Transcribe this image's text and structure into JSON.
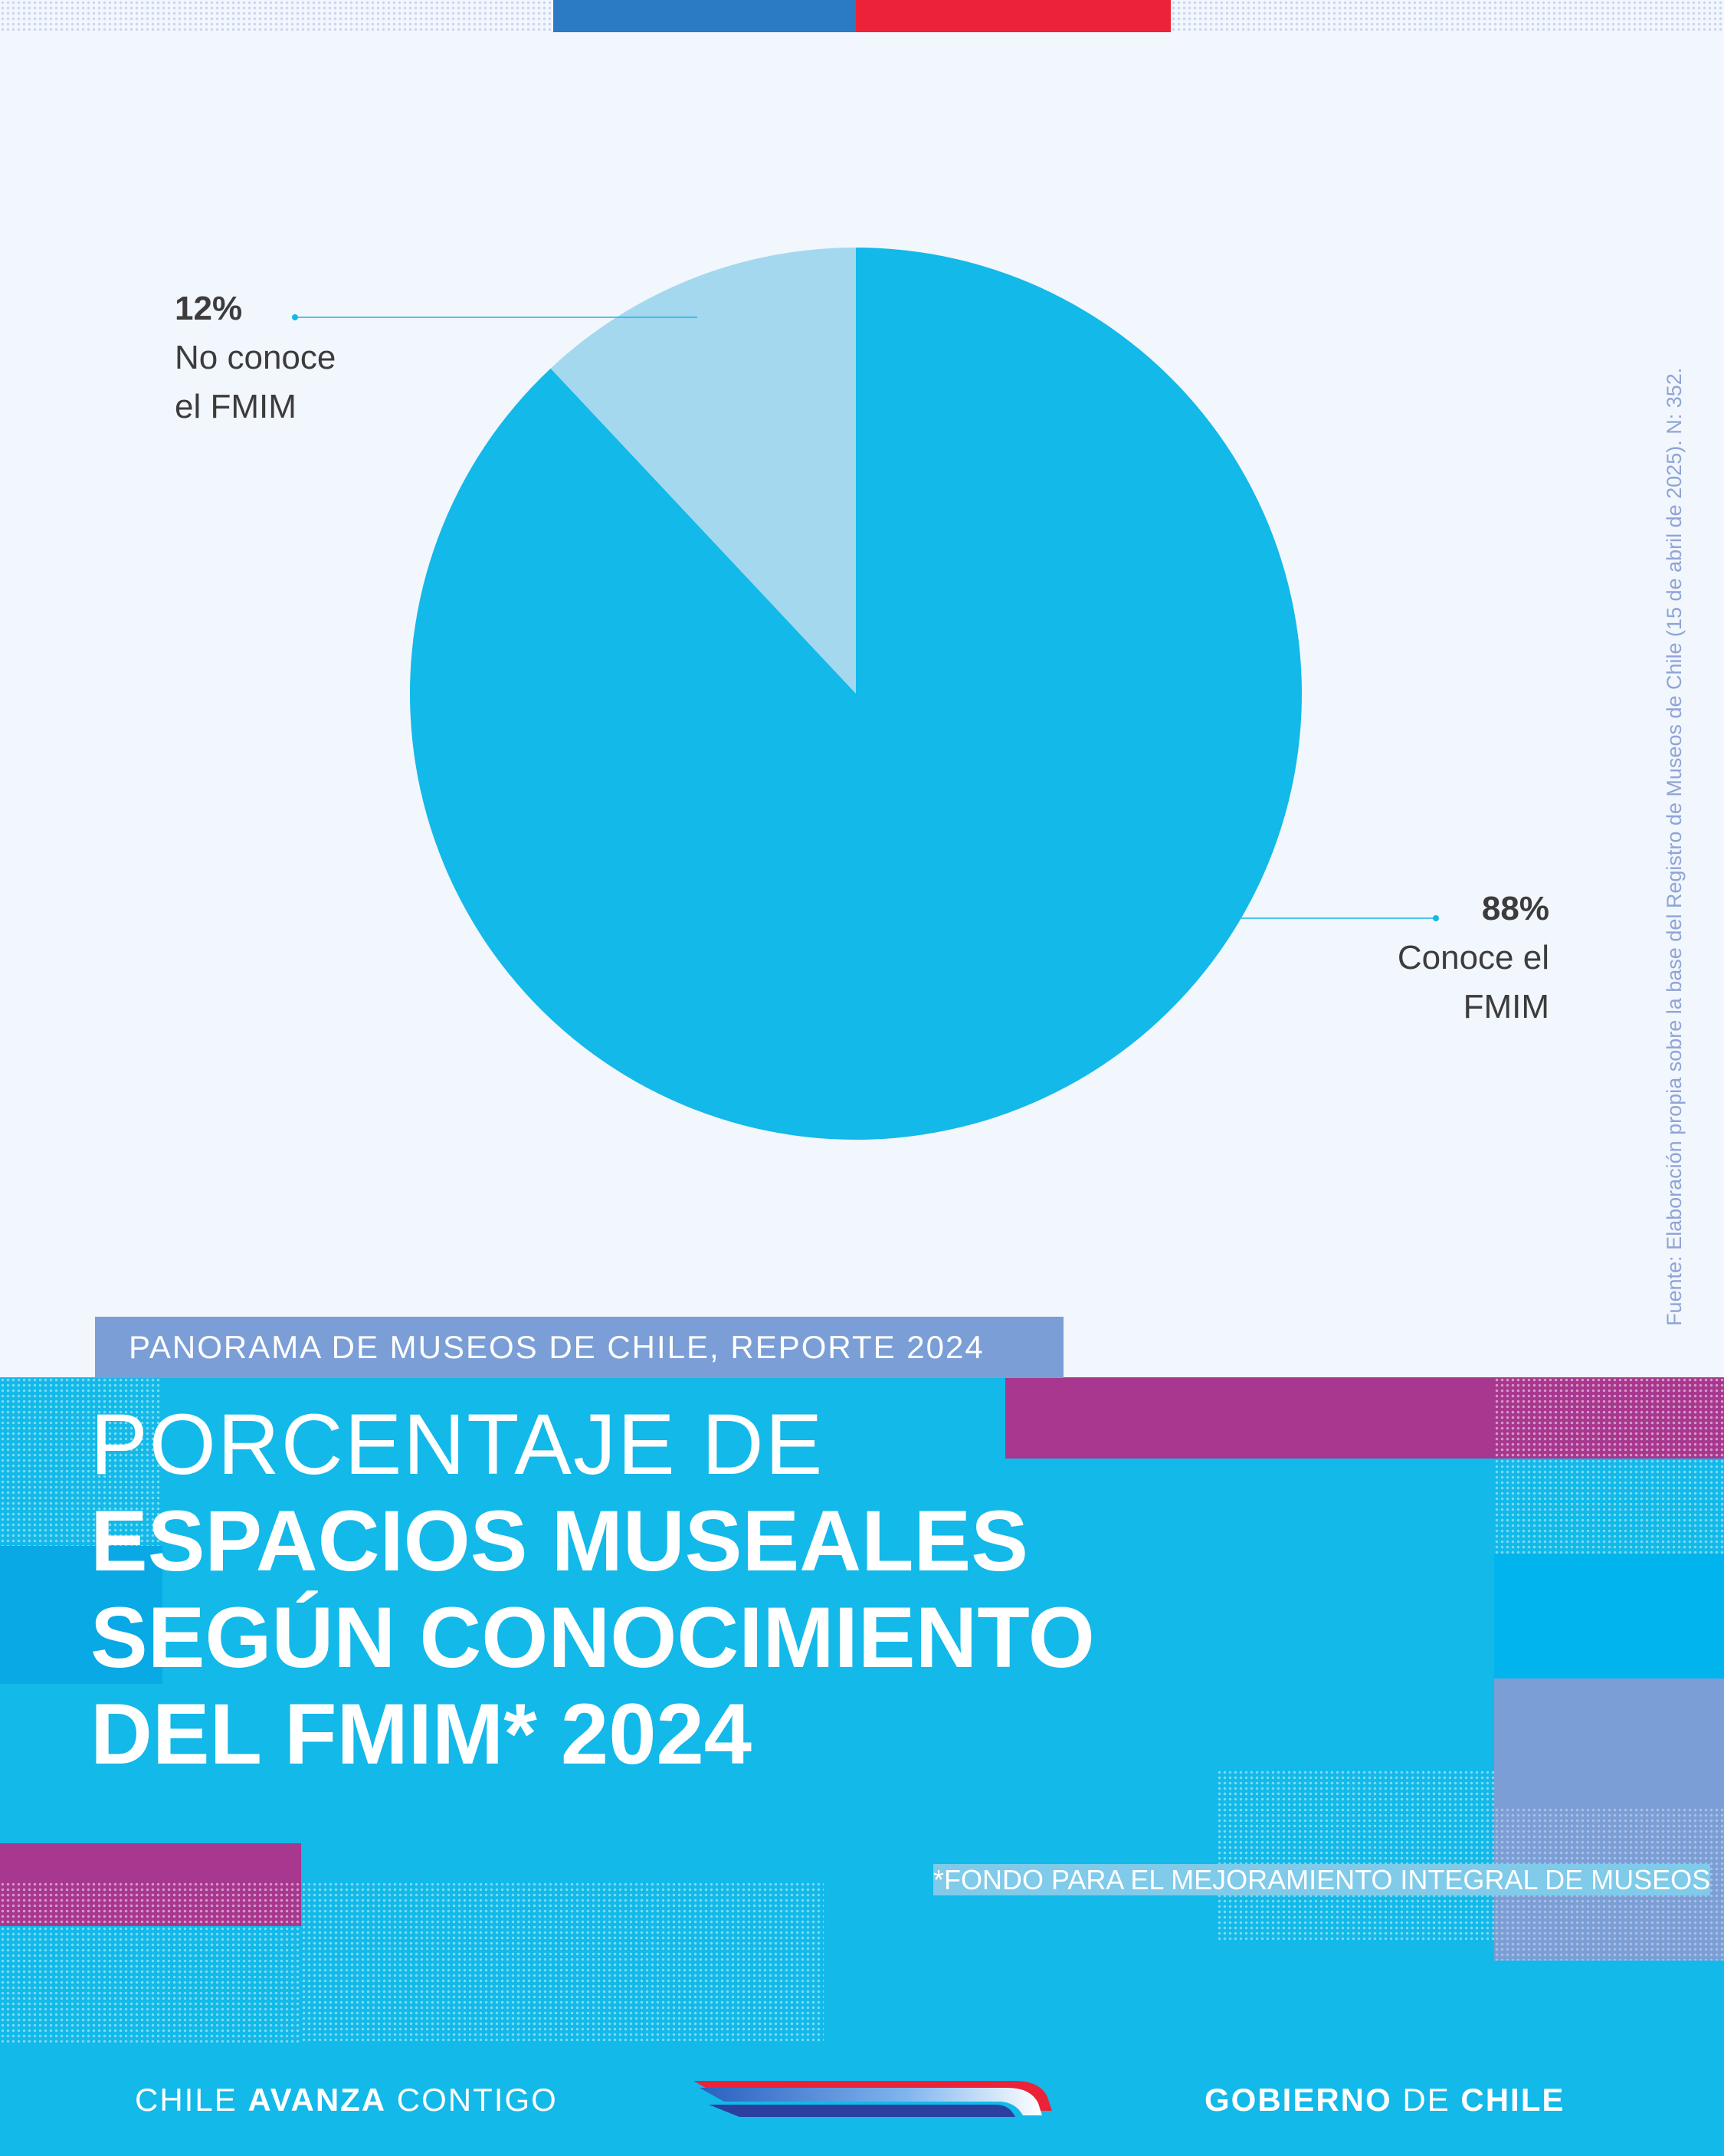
{
  "header": {
    "kicker": "PANORAMA DE MUSEOS DE CHILE, REPORTE 2024",
    "title_light": "PORCENTAJE DE",
    "title_bold_1": "ESPACIOS MUSEALES",
    "title_bold_2": "SEGÚN CONOCIMIENTO",
    "title_bold_3": "DEL FMIM* 2024"
  },
  "source": "Fuente: Elaboración propia sobre la base del Registro de Museos de Chile (15 de abril de 2025). N: 352.",
  "footnote": "*FONDO PARA EL MEJORAMIENTO INTEGRAL DE MUSEOS",
  "footer": {
    "left_1": "CHILE ",
    "left_2": "AVANZA",
    "left_3": " CONTIGO",
    "right_1": "GOBIERNO",
    "right_2": " DE ",
    "right_3": "CHILE"
  },
  "colors": {
    "conoce": "#12b9e9",
    "no_conoce": "#a3d8ef",
    "leader": "#12b9e9"
  },
  "chart_data": {
    "type": "pie",
    "slices": [
      {
        "label_line1": "No conoce",
        "label_line2": "el FMIM",
        "value": 12,
        "display": "12%"
      },
      {
        "label_line1": "Conoce el",
        "label_line2": "FMIM",
        "value": 88,
        "display": "88%"
      }
    ]
  }
}
